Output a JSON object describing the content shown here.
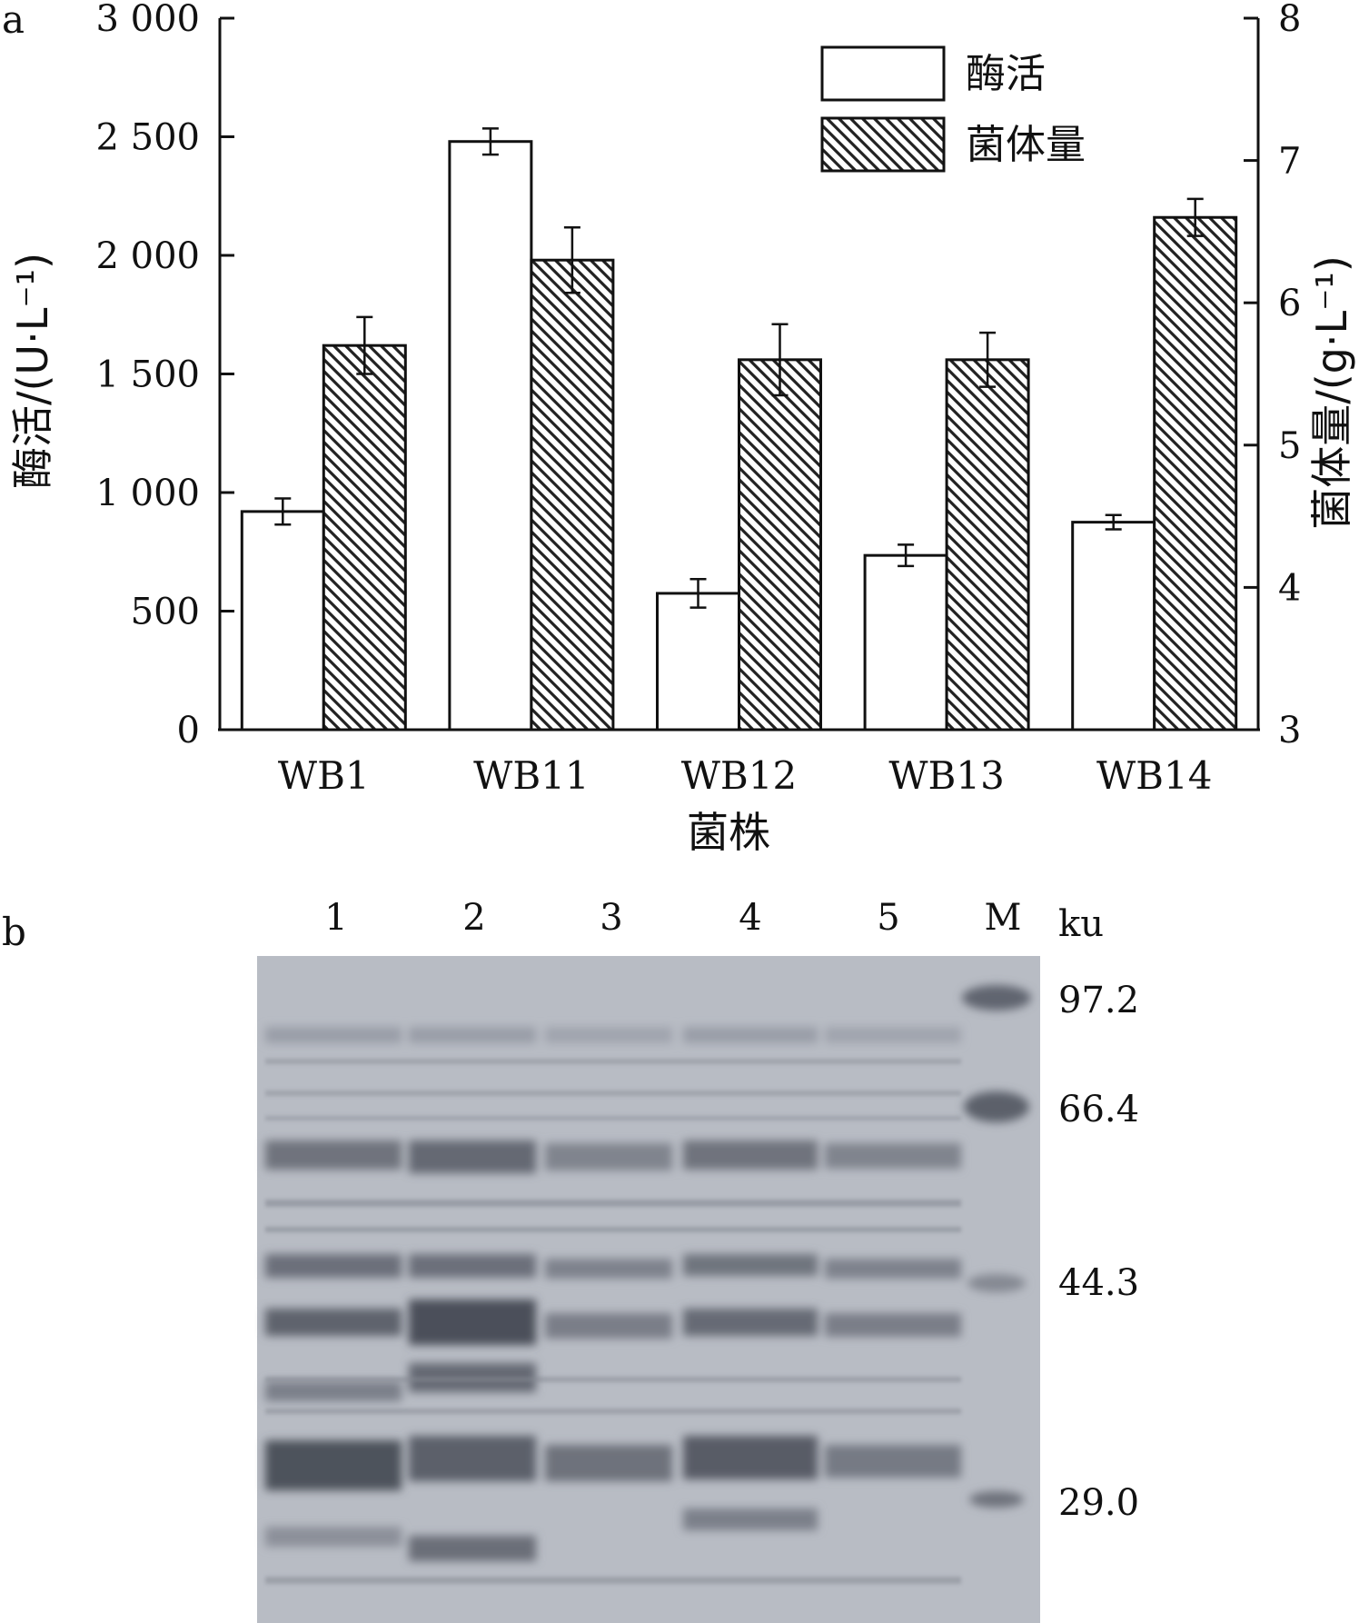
{
  "panel_a_label": "a",
  "panel_b_label": "b",
  "chart_data": {
    "type": "bar",
    "title": "",
    "xlabel": "菌株",
    "ylabel": "酶活/(U·L⁻¹)",
    "y2label": "菌体量/(g·L⁻¹)",
    "categories": [
      "WB1",
      "WB11",
      "WB12",
      "WB13",
      "WB14"
    ],
    "ylim": [
      0,
      3000
    ],
    "y2lim": [
      3,
      8
    ],
    "y_ticks": [
      "0",
      "500",
      "1 000",
      "1 500",
      "2 000",
      "2 500",
      "3 000"
    ],
    "y2_ticks": [
      "3",
      "4",
      "5",
      "6",
      "7",
      "8"
    ],
    "legend_position": "top-right",
    "series": [
      {
        "name": "酶活",
        "axis": "left",
        "pattern": "open",
        "values": [
          920,
          2480,
          575,
          735,
          875
        ],
        "errors": [
          55,
          55,
          60,
          45,
          30
        ]
      },
      {
        "name": "菌体量",
        "axis": "right",
        "pattern": "hatched",
        "values": [
          5.7,
          6.3,
          5.6,
          5.6,
          6.6
        ],
        "errors": [
          0.2,
          0.23,
          0.25,
          0.19,
          0.13
        ]
      }
    ]
  },
  "gel": {
    "lane_labels": [
      "1",
      "2",
      "3",
      "4",
      "5",
      "M"
    ],
    "unit_label": "ku",
    "marker_labels": [
      "97.2",
      "66.4",
      "44.3",
      "29.0"
    ]
  }
}
